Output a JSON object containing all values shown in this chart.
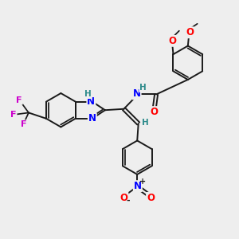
{
  "background_color": "#eeeeee",
  "bond_color": "#1a1a1a",
  "bond_width": 1.4,
  "atom_colors": {
    "N": "#0000ff",
    "O": "#ff0000",
    "F": "#cc00cc",
    "H": "#2e8b8b",
    "C": "#1a1a1a"
  }
}
